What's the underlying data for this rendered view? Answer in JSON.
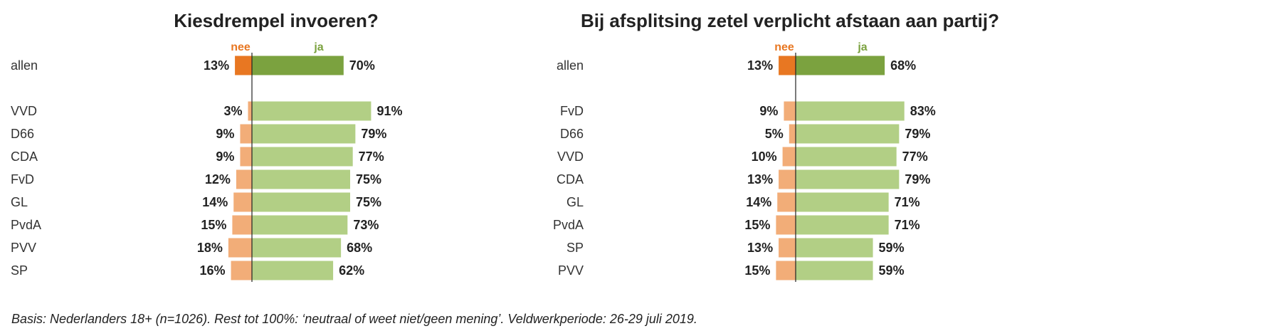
{
  "colors": {
    "nee_highlight": "#E87722",
    "ja_highlight": "#7BA23F",
    "nee": "#F2AD78",
    "ja": "#B2CF85"
  },
  "chart_data": [
    {
      "type": "bar",
      "orientation": "horizontal-diverging",
      "title": "Kiesdrempel invoeren?",
      "legend": [
        "nee",
        "ja"
      ],
      "categories": [
        "allen",
        "VVD",
        "D66",
        "CDA",
        "FvD",
        "GL",
        "PvdA",
        "PVV",
        "SP"
      ],
      "series": [
        {
          "name": "nee",
          "values": [
            13,
            3,
            9,
            9,
            12,
            14,
            15,
            18,
            16
          ]
        },
        {
          "name": "ja",
          "values": [
            70,
            91,
            79,
            77,
            75,
            75,
            73,
            68,
            62
          ]
        }
      ],
      "unit": "%"
    },
    {
      "type": "bar",
      "orientation": "horizontal-diverging",
      "title": "Bij afsplitsing zetel verplicht afstaan aan partij?",
      "legend": [
        "nee",
        "ja"
      ],
      "categories": [
        "allen",
        "FvD",
        "D66",
        "VVD",
        "CDA",
        "GL",
        "PvdA",
        "SP",
        "PVV"
      ],
      "series": [
        {
          "name": "nee",
          "values": [
            13,
            9,
            5,
            10,
            13,
            14,
            15,
            13,
            15
          ]
        },
        {
          "name": "ja",
          "values": [
            68,
            83,
            79,
            77,
            79,
            71,
            71,
            59,
            59
          ]
        }
      ],
      "unit": "%"
    }
  ],
  "footnote": "Basis: Nederlanders 18+ (n=1026). Rest tot 100%: ‘neutraal of weet niet/geen mening’. Veldwerkperiode: 26-29 juli 2019."
}
